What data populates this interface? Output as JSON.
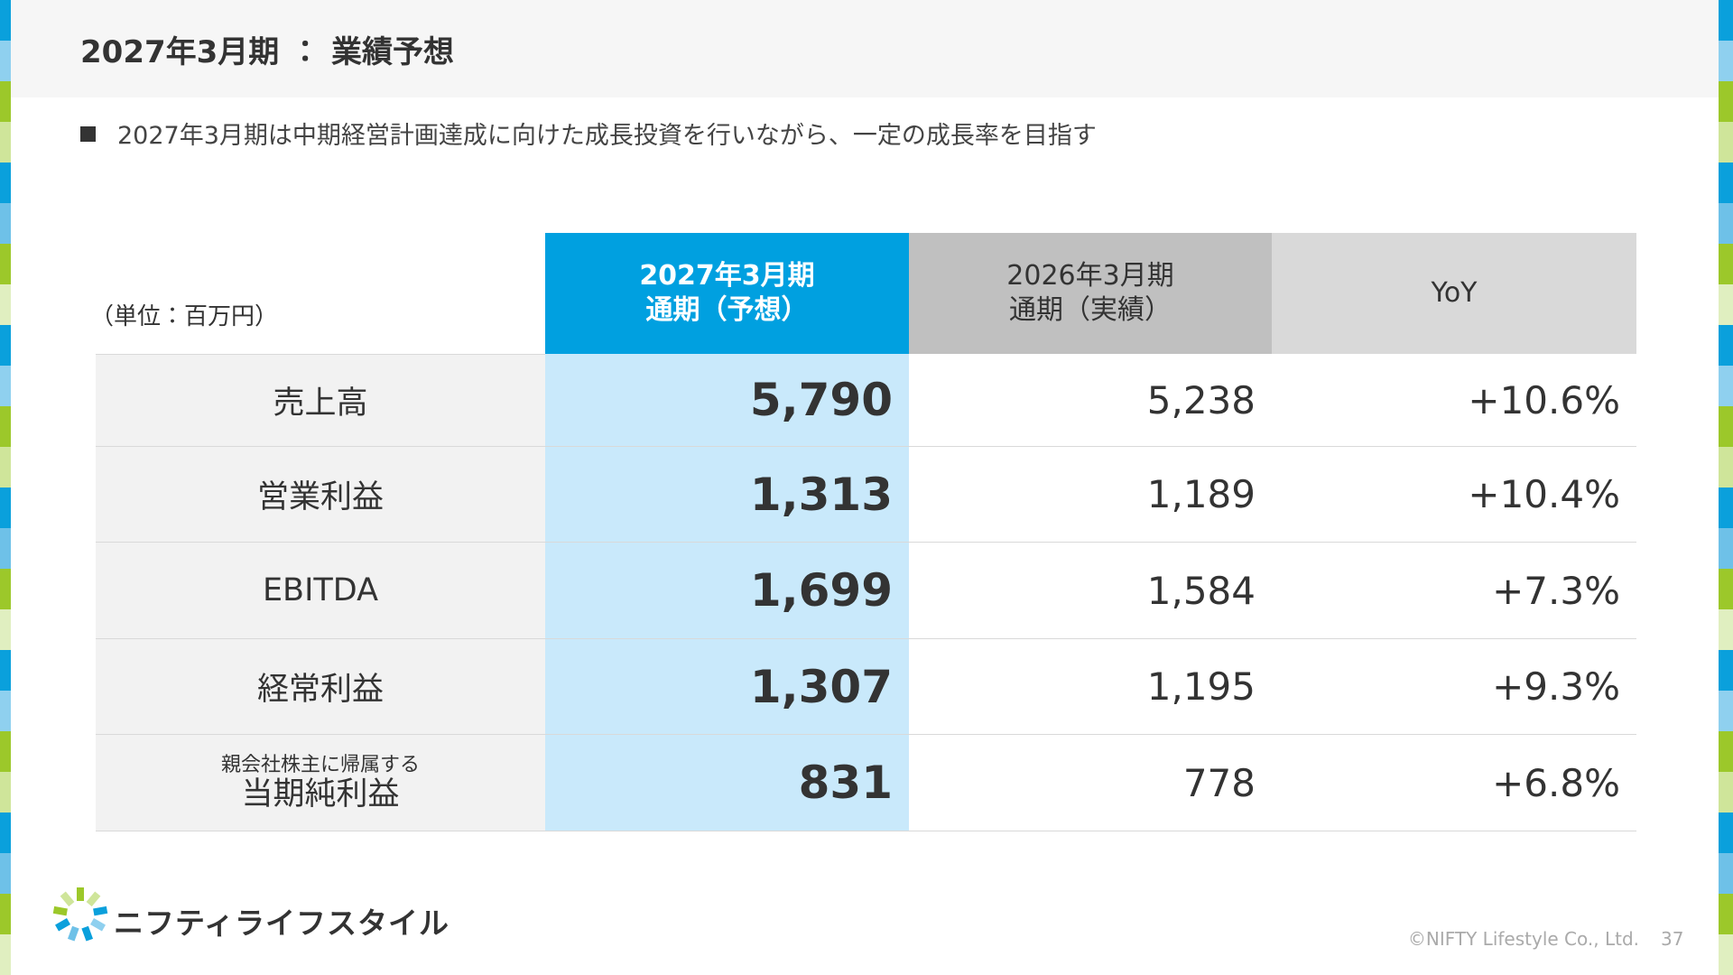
{
  "header": {
    "title": "2027年3月期 ： 業績予想"
  },
  "bullet": "2027年3月期は中期経営計画達成に向けた成長投資を行いながら、一定の成長率を目指す",
  "table": {
    "unit": "（単位：百万円）",
    "columns": [
      [
        "2027年3月期",
        "通期（予想）"
      ],
      [
        "2026年3月期",
        "通期（実績）"
      ],
      [
        "YoY"
      ]
    ],
    "rows": [
      {
        "label": "売上高",
        "values": [
          "5,790",
          "5,238",
          "+10.6%"
        ]
      },
      {
        "label": "営業利益",
        "values": [
          "1,313",
          "1,189",
          "+10.4%"
        ]
      },
      {
        "label": "EBITDA",
        "values": [
          "1,699",
          "1,584",
          "+7.3%"
        ]
      },
      {
        "label": "経常利益",
        "values": [
          "1,307",
          "1,195",
          "+9.3%"
        ]
      },
      {
        "sublabel": "親会社株主に帰属する",
        "label": "当期純利益",
        "values": [
          "831",
          "778",
          "+6.8%"
        ]
      }
    ]
  },
  "footer": {
    "logo": "ニフティライフスタイル",
    "copyright": "©NIFTY Lifestyle Co., Ltd.",
    "page": "37"
  }
}
